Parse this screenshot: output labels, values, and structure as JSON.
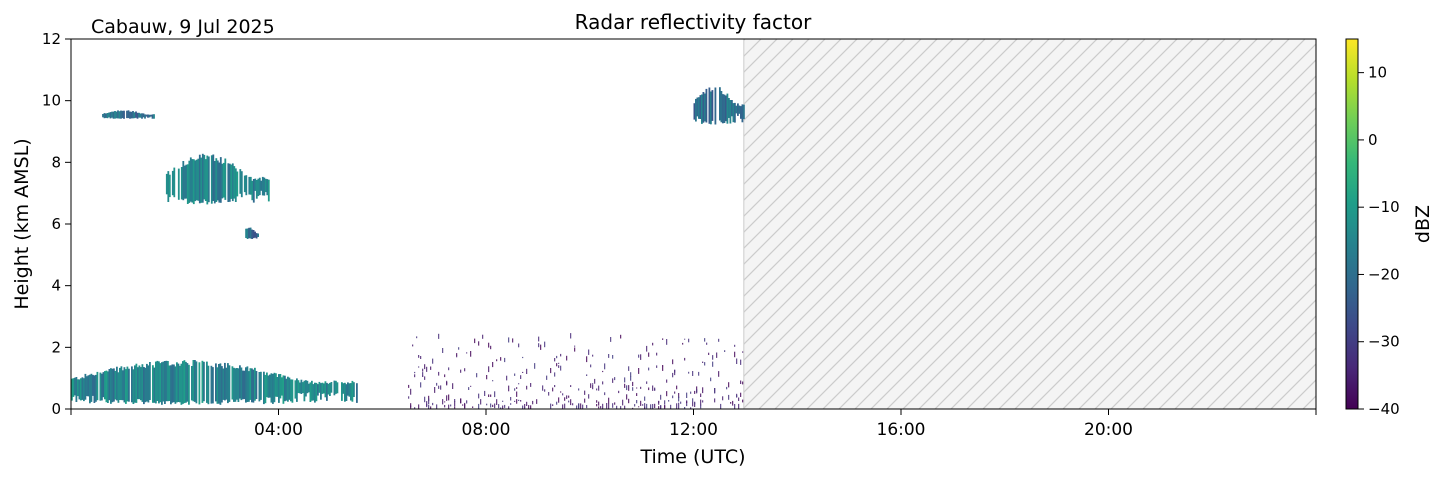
{
  "chart_data": {
    "type": "heatmap",
    "title": "Radar reflectivity factor",
    "site_label": "Cabauw, 9 Jul 2025",
    "xlabel": "Time (UTC)",
    "ylabel": "Height (km AMSL)",
    "xlim_hours": [
      0,
      24
    ],
    "ylim_km": [
      0,
      12
    ],
    "x_ticks_hours": [
      4,
      8,
      12,
      16,
      20
    ],
    "x_tick_labels": [
      "04:00",
      "08:00",
      "12:00",
      "16:00",
      "20:00"
    ],
    "y_ticks": [
      0,
      2,
      4,
      6,
      8,
      10,
      12
    ],
    "y_tick_labels": [
      "0",
      "2",
      "4",
      "6",
      "8",
      "10",
      "12"
    ],
    "no_data_after_hours": 12.97,
    "colorbar": {
      "label": "dBZ",
      "range": [
        -40,
        15
      ],
      "ticks": [
        -40,
        -30,
        -20,
        -10,
        0,
        10
      ],
      "tick_labels": [
        "−40",
        "−30",
        "−20",
        "−10",
        "0",
        "10"
      ],
      "colormap": [
        "#440154",
        "#482878",
        "#3e4989",
        "#31688e",
        "#26828e",
        "#1f9e89",
        "#35b779",
        "#6ece58",
        "#b5de2b",
        "#fde725"
      ]
    },
    "echo_regions": [
      {
        "name": "boundary-layer-echo",
        "t_start": 0.0,
        "t_end": 5.5,
        "h_bottom": 0.1,
        "h_top": 1.6,
        "dbz": -15
      },
      {
        "name": "mid-level-cloud",
        "t_start": 1.8,
        "t_end": 3.8,
        "h_bottom": 6.6,
        "h_top": 8.3,
        "dbz": -15
      },
      {
        "name": "mid-level-cloud-tail",
        "t_start": 3.3,
        "t_end": 3.6,
        "h_bottom": 5.5,
        "h_top": 5.9,
        "dbz": -20
      },
      {
        "name": "upper-cirrus-fragment",
        "t_start": 0.6,
        "t_end": 1.6,
        "h_bottom": 9.4,
        "h_top": 9.7,
        "dbz": -20
      },
      {
        "name": "upper-cirrus-fragment-2",
        "t_start": 12.0,
        "t_end": 12.97,
        "h_bottom": 9.2,
        "h_top": 10.5,
        "dbz": -20
      },
      {
        "name": "clear-air-insects",
        "t_start": 6.5,
        "t_end": 12.97,
        "h_bottom": 0.0,
        "h_top": 2.3,
        "dbz": -35
      }
    ]
  }
}
